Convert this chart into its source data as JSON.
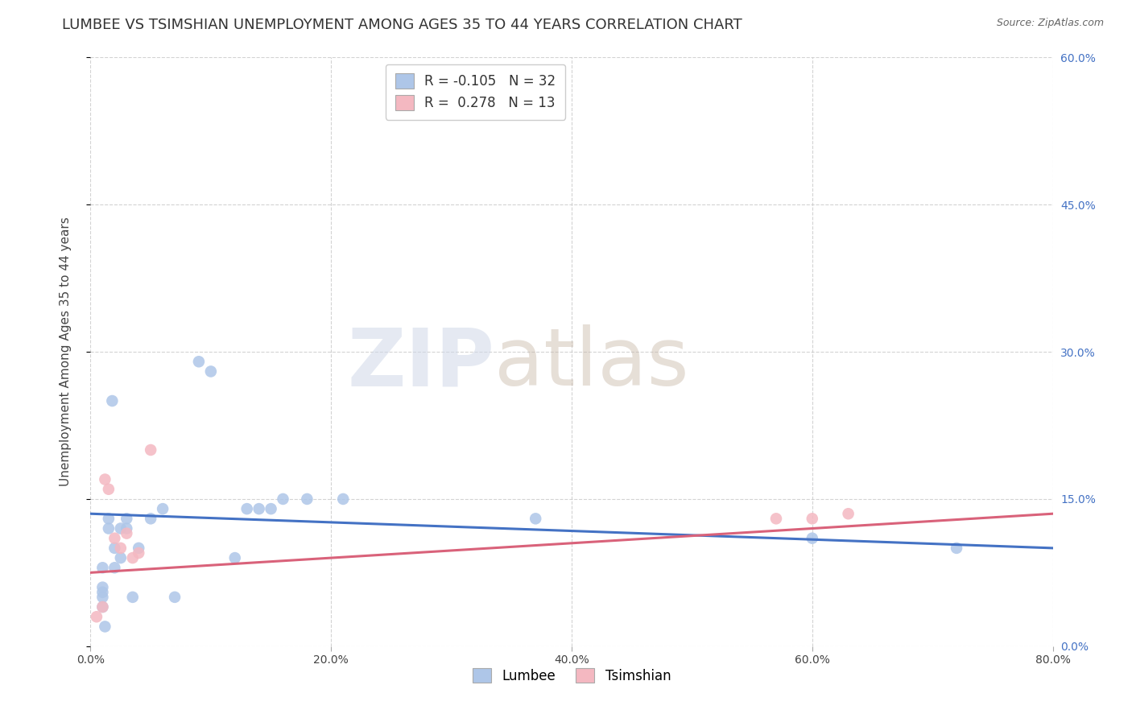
{
  "title": "LUMBEE VS TSIMSHIAN UNEMPLOYMENT AMONG AGES 35 TO 44 YEARS CORRELATION CHART",
  "source": "Source: ZipAtlas.com",
  "ylabel": "Unemployment Among Ages 35 to 44 years",
  "lumbee_R": -0.105,
  "lumbee_N": 32,
  "tsimshian_R": 0.278,
  "tsimshian_N": 13,
  "lumbee_color": "#aec6e8",
  "tsimshian_color": "#f4b8c1",
  "lumbee_line_color": "#4472c4",
  "tsimshian_line_color": "#d9627a",
  "background_color": "#ffffff",
  "xlim": [
    0.0,
    0.8
  ],
  "ylim": [
    0.0,
    0.6
  ],
  "xticks": [
    0.0,
    0.2,
    0.4,
    0.6,
    0.8
  ],
  "yticks": [
    0.0,
    0.15,
    0.3,
    0.45,
    0.6
  ],
  "ytick_labels_right": [
    "0.0%",
    "15.0%",
    "30.0%",
    "45.0%",
    "60.0%"
  ],
  "xtick_labels": [
    "0.0%",
    "20.0%",
    "40.0%",
    "60.0%",
    "80.0%"
  ],
  "lumbee_x": [
    0.01,
    0.01,
    0.01,
    0.01,
    0.01,
    0.012,
    0.015,
    0.015,
    0.018,
    0.02,
    0.02,
    0.025,
    0.025,
    0.03,
    0.03,
    0.035,
    0.04,
    0.05,
    0.06,
    0.07,
    0.09,
    0.1,
    0.12,
    0.13,
    0.14,
    0.15,
    0.16,
    0.18,
    0.21,
    0.37,
    0.6,
    0.72
  ],
  "lumbee_y": [
    0.04,
    0.05,
    0.055,
    0.06,
    0.08,
    0.02,
    0.12,
    0.13,
    0.25,
    0.08,
    0.1,
    0.09,
    0.12,
    0.12,
    0.13,
    0.05,
    0.1,
    0.13,
    0.14,
    0.05,
    0.29,
    0.28,
    0.09,
    0.14,
    0.14,
    0.14,
    0.15,
    0.15,
    0.15,
    0.13,
    0.11,
    0.1
  ],
  "tsimshian_x": [
    0.005,
    0.01,
    0.012,
    0.015,
    0.02,
    0.025,
    0.03,
    0.035,
    0.04,
    0.05,
    0.57,
    0.6,
    0.63
  ],
  "tsimshian_y": [
    0.03,
    0.04,
    0.17,
    0.16,
    0.11,
    0.1,
    0.115,
    0.09,
    0.095,
    0.2,
    0.13,
    0.13,
    0.135
  ],
  "lumbee_trendline_x": [
    0.0,
    0.8
  ],
  "lumbee_trendline_y": [
    0.135,
    0.1
  ],
  "tsimshian_trendline_x": [
    0.0,
    0.8
  ],
  "tsimshian_trendline_y": [
    0.075,
    0.135
  ],
  "grid_color": "#c8c8c8",
  "title_fontsize": 13,
  "label_fontsize": 11,
  "tick_fontsize": 10,
  "legend_fontsize": 12,
  "marker_size": 110
}
